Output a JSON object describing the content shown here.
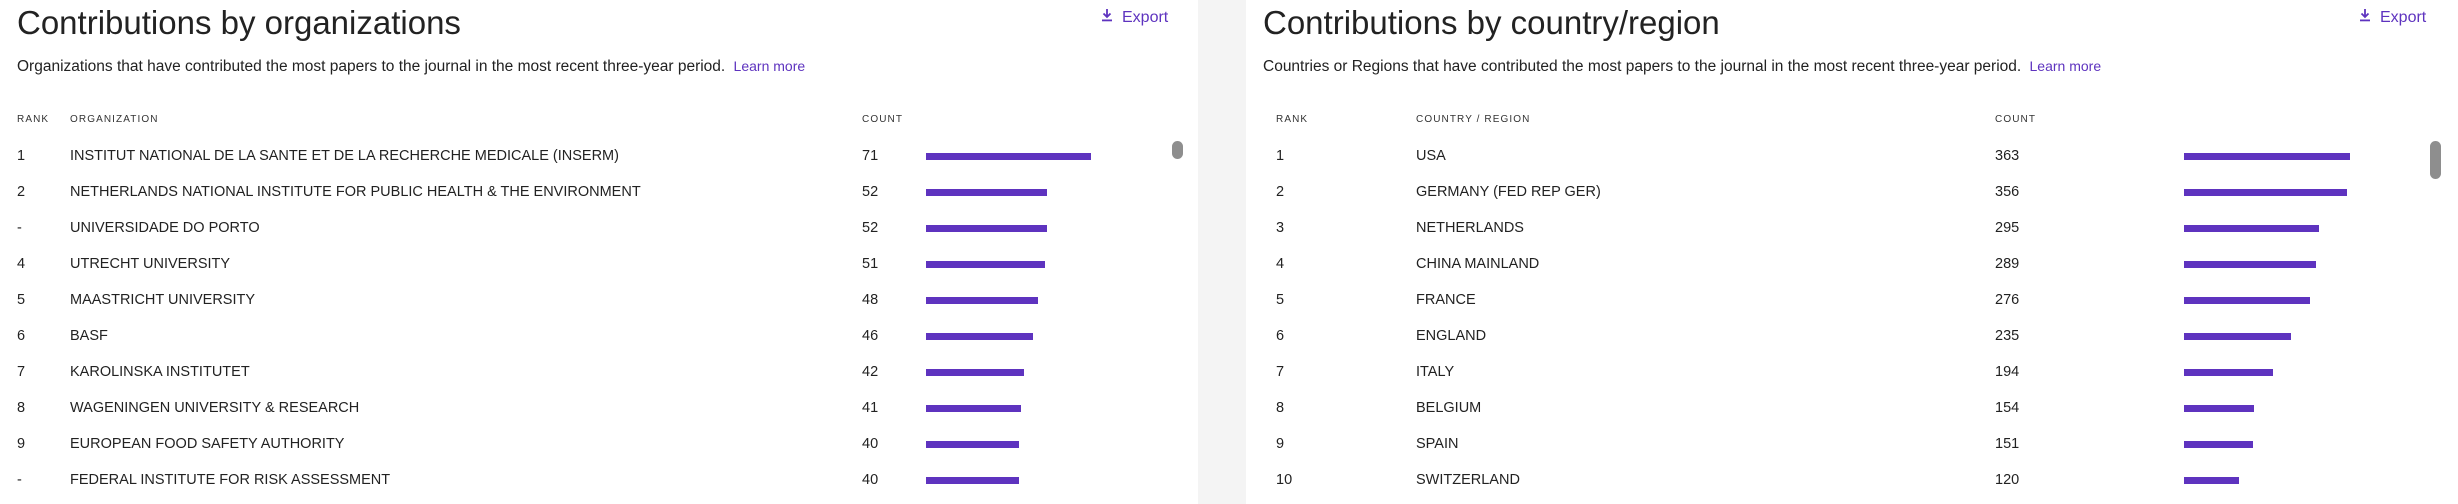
{
  "organizations": {
    "title": "Contributions by organizations",
    "export_label": "Export",
    "description": "Organizations that have contributed the most papers to the journal in the most recent three-year period.",
    "learn_more": "Learn more",
    "headers": {
      "rank": "RANK",
      "name": "ORGANIZATION",
      "count": "COUNT"
    },
    "max_count": 71,
    "rows": [
      {
        "rank": "1",
        "name": "INSTITUT NATIONAL DE LA SANTE ET DE LA RECHERCHE MEDICALE (INSERM)",
        "count": 71
      },
      {
        "rank": "2",
        "name": "NETHERLANDS NATIONAL INSTITUTE FOR PUBLIC HEALTH & THE ENVIRONMENT",
        "count": 52
      },
      {
        "rank": "-",
        "name": "UNIVERSIDADE DO PORTO",
        "count": 52
      },
      {
        "rank": "4",
        "name": "UTRECHT UNIVERSITY",
        "count": 51
      },
      {
        "rank": "5",
        "name": "MAASTRICHT UNIVERSITY",
        "count": 48
      },
      {
        "rank": "6",
        "name": "BASF",
        "count": 46
      },
      {
        "rank": "7",
        "name": "KAROLINSKA INSTITUTET",
        "count": 42
      },
      {
        "rank": "8",
        "name": "WAGENINGEN UNIVERSITY & RESEARCH",
        "count": 41
      },
      {
        "rank": "9",
        "name": "EUROPEAN FOOD SAFETY AUTHORITY",
        "count": 40
      },
      {
        "rank": "-",
        "name": "FEDERAL INSTITUTE FOR RISK ASSESSMENT",
        "count": 40
      }
    ]
  },
  "countries": {
    "title": "Contributions by country/region",
    "export_label": "Export",
    "description": "Countries or Regions that have contributed the most papers to the journal in the most recent three-year period.",
    "learn_more": "Learn more",
    "headers": {
      "rank": "RANK",
      "name": "COUNTRY / REGION",
      "count": "COUNT"
    },
    "max_count": 363,
    "rows": [
      {
        "rank": "1",
        "name": "USA",
        "count": 363
      },
      {
        "rank": "2",
        "name": "GERMANY (FED REP GER)",
        "count": 356
      },
      {
        "rank": "3",
        "name": "NETHERLANDS",
        "count": 295
      },
      {
        "rank": "4",
        "name": "CHINA MAINLAND",
        "count": 289
      },
      {
        "rank": "5",
        "name": "FRANCE",
        "count": 276
      },
      {
        "rank": "6",
        "name": "ENGLAND",
        "count": 235
      },
      {
        "rank": "7",
        "name": "ITALY",
        "count": 194
      },
      {
        "rank": "8",
        "name": "BELGIUM",
        "count": 154
      },
      {
        "rank": "9",
        "name": "SPAIN",
        "count": 151
      },
      {
        "rank": "10",
        "name": "SWITZERLAND",
        "count": 120
      }
    ]
  },
  "colors": {
    "accent": "#5e33bf",
    "text": "#222222"
  },
  "icons": {
    "export": "download-icon"
  }
}
